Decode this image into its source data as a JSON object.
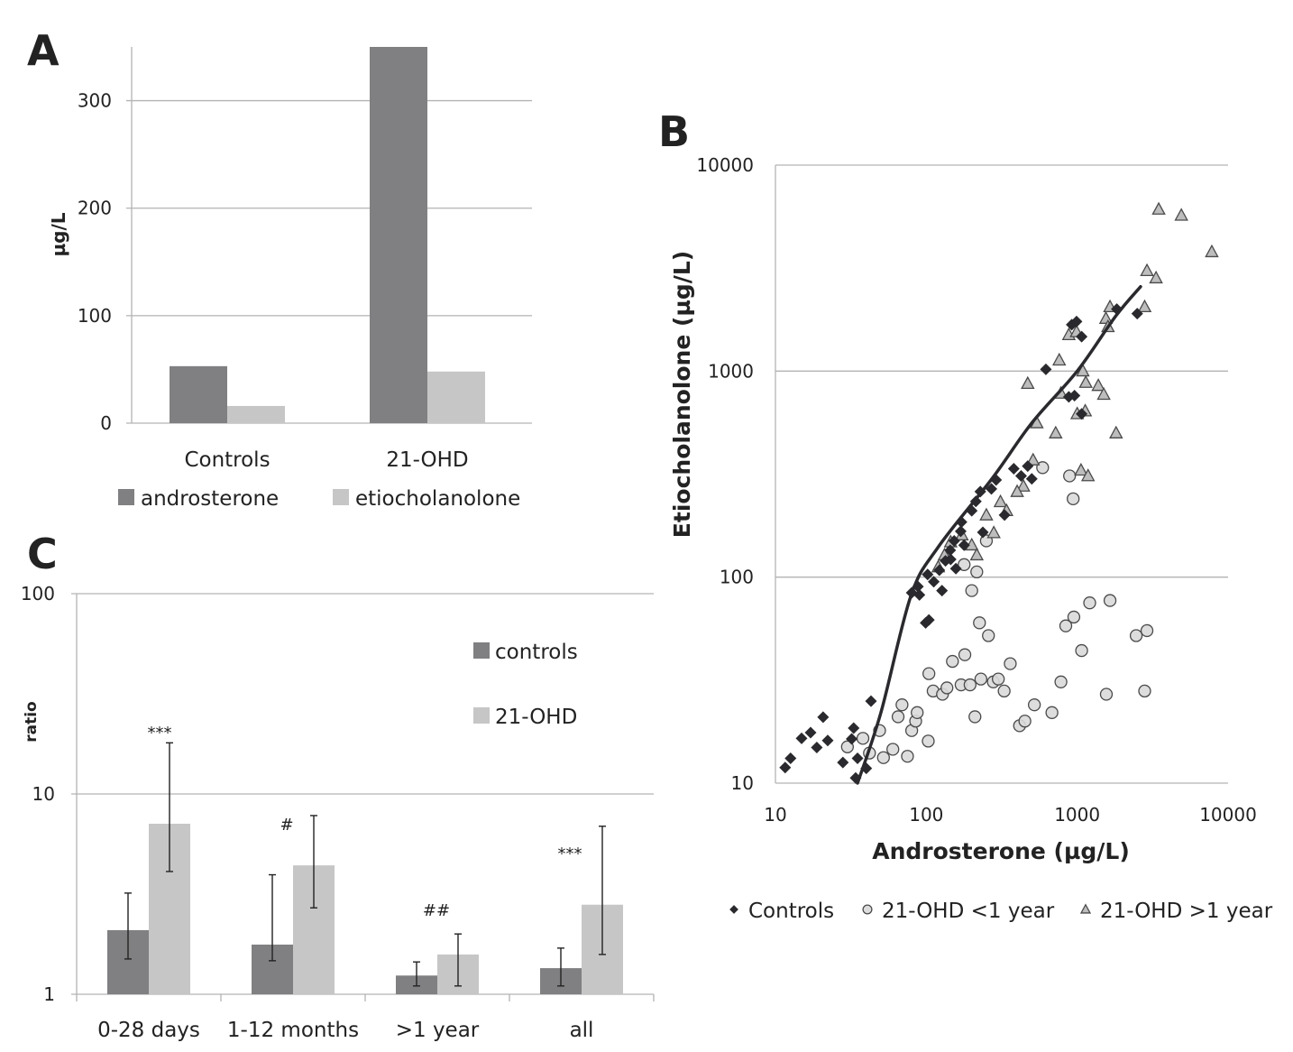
{
  "colors": {
    "dark_bar": "#808083",
    "light_bar": "#c6c6c7",
    "grid": "#b3b3b3",
    "controls_marker": "#2a2a2e",
    "circle_fill": "#d9d9d9",
    "triangle_fill": "#bdbdbd",
    "marker_edge": "#4a4a4a",
    "curve": "#2a2a2e"
  },
  "chart_data": [
    {
      "id": "A",
      "panel_label": "A",
      "type": "bar",
      "title": "",
      "xlabel": "",
      "ylabel": "µg/L",
      "ylim": [
        0,
        350
      ],
      "yticks": [
        "0",
        "100",
        "200",
        "300"
      ],
      "ytick_values": [
        0,
        100,
        200,
        300
      ],
      "grid": true,
      "categories": [
        "Controls",
        "21-OHD"
      ],
      "series": [
        {
          "name": "androsterone",
          "values": [
            53,
            350
          ]
        },
        {
          "name": "etiocholanolone",
          "values": [
            16,
            48
          ]
        }
      ],
      "legend": [
        "androsterone",
        "etiocholanolone"
      ],
      "legend_position": "bottom"
    },
    {
      "id": "B",
      "panel_label": "B",
      "type": "scatter",
      "xlabel": "Androsterone (µg/L)",
      "ylabel": "Etiocholanolone (µg/L)",
      "xscale": "log",
      "yscale": "log",
      "xlim": [
        10,
        10000
      ],
      "ylim": [
        10,
        10000
      ],
      "xticks": [
        "10",
        "100",
        "1000",
        "10000"
      ],
      "xtick_values": [
        10,
        100,
        1000,
        10000
      ],
      "yticks": [
        "10",
        "100",
        "1000",
        "10000"
      ],
      "ytick_values": [
        10,
        100,
        1000,
        10000
      ],
      "grid": true,
      "legend_position": "bottom",
      "series": [
        {
          "name": "Controls",
          "marker": "diamond",
          "points": [
            [
              11.6,
              11.9
            ],
            [
              12.6,
              13.2
            ],
            [
              14.9,
              16.5
            ],
            [
              17.1,
              17.6
            ],
            [
              18.8,
              14.9
            ],
            [
              20.7,
              20.9
            ],
            [
              22.2,
              16.1
            ],
            [
              28,
              12.6
            ],
            [
              32,
              16.4
            ],
            [
              33,
              18.5
            ],
            [
              35,
              13.2
            ],
            [
              40,
              11.8
            ],
            [
              43,
              25
            ],
            [
              34,
              10.6
            ],
            [
              99,
              60
            ],
            [
              104,
              62
            ],
            [
              80,
              84
            ],
            [
              88,
              90
            ],
            [
              90,
              82
            ],
            [
              102,
              103
            ],
            [
              112,
              95
            ],
            [
              122,
              108
            ],
            [
              134,
              120
            ],
            [
              144,
              135
            ],
            [
              153,
              150
            ],
            [
              169,
              167
            ],
            [
              171,
              185
            ],
            [
              200,
              210
            ],
            [
              213,
              233
            ],
            [
              228,
              260
            ],
            [
              157,
              110
            ],
            [
              127,
              86
            ],
            [
              145,
              122
            ],
            [
              178,
              143
            ],
            [
              237,
              165
            ],
            [
              290,
              296
            ],
            [
              270,
              268
            ],
            [
              330,
              200
            ],
            [
              380,
              336
            ],
            [
              425,
              310
            ],
            [
              470,
              346
            ],
            [
              500,
              300
            ],
            [
              620,
              1020
            ],
            [
              880,
              750
            ],
            [
              960,
              760
            ],
            [
              1070,
              620
            ],
            [
              920,
              1680
            ],
            [
              990,
              1740
            ],
            [
              1070,
              1470
            ],
            [
              1830,
              2000
            ],
            [
              2500,
              1900
            ]
          ]
        },
        {
          "name": "21-OHD <1 year",
          "marker": "circle",
          "points": [
            [
              30,
              15
            ],
            [
              38,
              16.5
            ],
            [
              42,
              14
            ],
            [
              49,
              18
            ],
            [
              52,
              13.3
            ],
            [
              60,
              14.6
            ],
            [
              65,
              21
            ],
            [
              69,
              24
            ],
            [
              75,
              13.5
            ],
            [
              80,
              18
            ],
            [
              85,
              20
            ],
            [
              87,
              22
            ],
            [
              103,
              16
            ],
            [
              111,
              28
            ],
            [
              104,
              34
            ],
            [
              128,
              27
            ],
            [
              137,
              29
            ],
            [
              149,
              39
            ],
            [
              170,
              30
            ],
            [
              180,
              42
            ],
            [
              195,
              30
            ],
            [
              210,
              21
            ],
            [
              225,
              60
            ],
            [
              230,
              32
            ],
            [
              258,
              52
            ],
            [
              278,
              31
            ],
            [
              300,
              32
            ],
            [
              328,
              28
            ],
            [
              360,
              38
            ],
            [
              415,
              19
            ],
            [
              450,
              20
            ],
            [
              520,
              24
            ],
            [
              680,
              22
            ],
            [
              780,
              31
            ],
            [
              840,
              58
            ],
            [
              1070,
              44
            ],
            [
              950,
              64
            ],
            [
              1210,
              75
            ],
            [
              1650,
              77
            ],
            [
              2460,
              52
            ],
            [
              2900,
              55
            ],
            [
              2800,
              28
            ],
            [
              1560,
              27
            ],
            [
              590,
              340
            ],
            [
              890,
              310
            ],
            [
              940,
              240
            ],
            [
              216,
              106
            ],
            [
              178,
              115
            ],
            [
              200,
              86
            ],
            [
              250,
              150
            ]
          ]
        },
        {
          "name": "21-OHD >1 year",
          "marker": "triangle",
          "points": [
            [
              3470,
              6100
            ],
            [
              4900,
              5700
            ],
            [
              7800,
              3790
            ],
            [
              2900,
              3070
            ],
            [
              3330,
              2830
            ],
            [
              2800,
              2050
            ],
            [
              1650,
              2050
            ],
            [
              1550,
              1800
            ],
            [
              1600,
              1640
            ],
            [
              880,
              1500
            ],
            [
              990,
              1550
            ],
            [
              1090,
              1000
            ],
            [
              760,
              1130
            ],
            [
              1140,
              880
            ],
            [
              1380,
              850
            ],
            [
              1500,
              770
            ],
            [
              780,
              780
            ],
            [
              1000,
              620
            ],
            [
              1130,
              640
            ],
            [
              720,
              500
            ],
            [
              1810,
              500
            ],
            [
              540,
              560
            ],
            [
              510,
              370
            ],
            [
              1060,
              330
            ],
            [
              1180,
              310
            ],
            [
              440,
              276
            ],
            [
              400,
              260
            ],
            [
              310,
              232
            ],
            [
              340,
              210
            ],
            [
              250,
              200
            ],
            [
              200,
              143
            ],
            [
              172,
              160
            ],
            [
              145,
              148
            ],
            [
              120,
              112
            ],
            [
              132,
              128
            ],
            [
              216,
              128
            ],
            [
              280,
              164
            ],
            [
              470,
              870
            ]
          ]
        }
      ],
      "fit_curve": {
        "name": "fit",
        "points": [
          [
            35,
            10
          ],
          [
            50,
            22
          ],
          [
            79,
            81
          ],
          [
            120,
            140
          ],
          [
            272,
            300
          ],
          [
            500,
            560
          ],
          [
            1000,
            1000
          ],
          [
            1800,
            1850
          ],
          [
            2630,
            2570
          ]
        ]
      }
    },
    {
      "id": "C",
      "panel_label": "C",
      "type": "bar",
      "xlabel": "",
      "ylabel": "ratio",
      "yscale": "log",
      "ylim": [
        1,
        100
      ],
      "yticks": [
        "1",
        "10",
        "100"
      ],
      "ytick_values": [
        1,
        10,
        100
      ],
      "grid": true,
      "categories": [
        "0-28 days",
        "1-12 months",
        ">1 year",
        "all"
      ],
      "series": [
        {
          "name": "controls",
          "values": [
            2.09,
            1.77,
            1.24,
            1.35
          ],
          "error_low": [
            1.5,
            1.47,
            1.1,
            1.1
          ],
          "error_high": [
            3.2,
            3.95,
            1.45,
            1.7
          ]
        },
        {
          "name": "21-OHD",
          "values": [
            7.1,
            4.4,
            1.58,
            2.8
          ],
          "error_low": [
            4.1,
            2.7,
            1.1,
            1.58
          ],
          "error_high": [
            18,
            7.8,
            2.0,
            6.9
          ]
        }
      ],
      "annotations": [
        "***",
        "#",
        "##",
        "***"
      ],
      "legend": [
        "controls",
        "21-OHD"
      ],
      "legend_position": "top-right"
    }
  ]
}
